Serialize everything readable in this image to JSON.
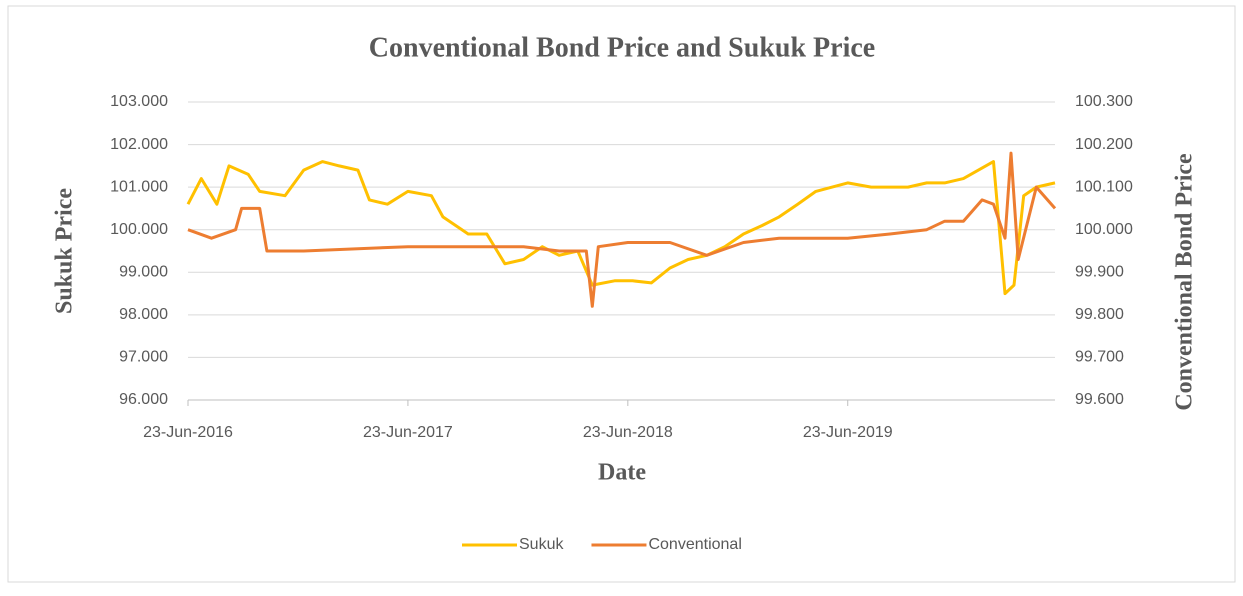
{
  "chart_data": {
    "type": "line",
    "title": "Conventional Bond Price and Sukuk Price",
    "x_label": "Date",
    "y_label": "Sukuk Price",
    "y2_label": "Conventional Bond Price",
    "xlim": [
      "2016-06-23",
      "2020-06-01"
    ],
    "xticks": [
      {
        "value": "2016-06-23",
        "label": "23-Jun-2016"
      },
      {
        "value": "2017-06-23",
        "label": "23-Jun-2017"
      },
      {
        "value": "2018-06-23",
        "label": "23-Jun-2018"
      },
      {
        "value": "2019-06-23",
        "label": "23-Jun-2019"
      }
    ],
    "ylim": [
      96,
      103
    ],
    "yticks": [
      {
        "value": 96,
        "label": "96.000"
      },
      {
        "value": 97,
        "label": "97.000"
      },
      {
        "value": 98,
        "label": "98.000"
      },
      {
        "value": 99,
        "label": "99.000"
      },
      {
        "value": 100,
        "label": "100.000"
      },
      {
        "value": 101,
        "label": "101.000"
      },
      {
        "value": 102,
        "label": "102.000"
      },
      {
        "value": 103,
        "label": "103.000"
      }
    ],
    "y2lim": [
      99.6,
      100.3
    ],
    "y2ticks": [
      {
        "value": 99.6,
        "label": "99.600"
      },
      {
        "value": 99.7,
        "label": "99.700"
      },
      {
        "value": 99.8,
        "label": "99.800"
      },
      {
        "value": 99.9,
        "label": "99.900"
      },
      {
        "value": 100,
        "label": "100.000"
      },
      {
        "value": 100.1,
        "label": "100.100"
      },
      {
        "value": 100.2,
        "label": "100.200"
      },
      {
        "value": 100.3,
        "label": "100.300"
      }
    ],
    "grid": true,
    "legend": "bottom",
    "series": [
      {
        "name": "Sukuk",
        "color": "#ffc000",
        "axis": "y",
        "x": [
          "2016-06-23",
          "2016-07-15",
          "2016-08-10",
          "2016-08-30",
          "2016-10-01",
          "2016-10-20",
          "2016-12-01",
          "2017-01-01",
          "2017-02-01",
          "2017-03-01",
          "2017-04-01",
          "2017-04-20",
          "2017-05-20",
          "2017-06-23",
          "2017-08-01",
          "2017-08-20",
          "2017-10-01",
          "2017-11-01",
          "2017-12-01",
          "2018-01-01",
          "2018-02-01",
          "2018-03-01",
          "2018-04-01",
          "2018-04-25",
          "2018-06-01",
          "2018-07-01",
          "2018-08-01",
          "2018-09-01",
          "2018-10-01",
          "2018-11-01",
          "2018-12-01",
          "2019-01-01",
          "2019-02-01",
          "2019-03-01",
          "2019-04-01",
          "2019-05-01",
          "2019-06-23",
          "2019-08-01",
          "2019-09-01",
          "2019-10-01",
          "2019-11-01",
          "2019-12-01",
          "2020-01-01",
          "2020-02-20",
          "2020-03-10",
          "2020-03-25",
          "2020-04-10",
          "2020-05-01",
          "2020-06-01"
        ],
        "values": [
          100.6,
          101.2,
          100.6,
          101.5,
          101.3,
          100.9,
          100.8,
          101.4,
          101.6,
          101.5,
          101.4,
          100.7,
          100.6,
          100.9,
          100.8,
          100.3,
          99.9,
          99.9,
          99.2,
          99.3,
          99.6,
          99.4,
          99.5,
          98.7,
          98.8,
          98.8,
          98.75,
          99.1,
          99.3,
          99.4,
          99.6,
          99.9,
          100.1,
          100.3,
          100.6,
          100.9,
          101.1,
          101.0,
          101.0,
          101.0,
          101.1,
          101.1,
          101.2,
          101.6,
          98.5,
          98.7,
          100.8,
          101.0,
          101.1
        ]
      },
      {
        "name": "Conventional",
        "color": "#ed7d31",
        "axis": "y2",
        "x": [
          "2016-06-23",
          "2016-08-01",
          "2016-09-10",
          "2016-09-20",
          "2016-10-20",
          "2016-11-01",
          "2017-01-01",
          "2017-06-23",
          "2018-01-01",
          "2018-03-01",
          "2018-04-15",
          "2018-04-25",
          "2018-05-05",
          "2018-06-23",
          "2018-09-01",
          "2018-11-01",
          "2019-01-01",
          "2019-03-01",
          "2019-06-23",
          "2019-09-01",
          "2019-11-01",
          "2019-12-01",
          "2020-01-01",
          "2020-02-01",
          "2020-02-20",
          "2020-03-10",
          "2020-03-20",
          "2020-04-01",
          "2020-05-01",
          "2020-06-01"
        ],
        "values": [
          100.0,
          99.98,
          100.0,
          100.05,
          100.05,
          99.95,
          99.95,
          99.96,
          99.96,
          99.95,
          99.95,
          99.82,
          99.96,
          99.97,
          99.97,
          99.94,
          99.97,
          99.98,
          99.98,
          99.99,
          100.0,
          100.02,
          100.02,
          100.07,
          100.06,
          99.98,
          100.18,
          99.93,
          100.1,
          100.05
        ]
      }
    ]
  }
}
